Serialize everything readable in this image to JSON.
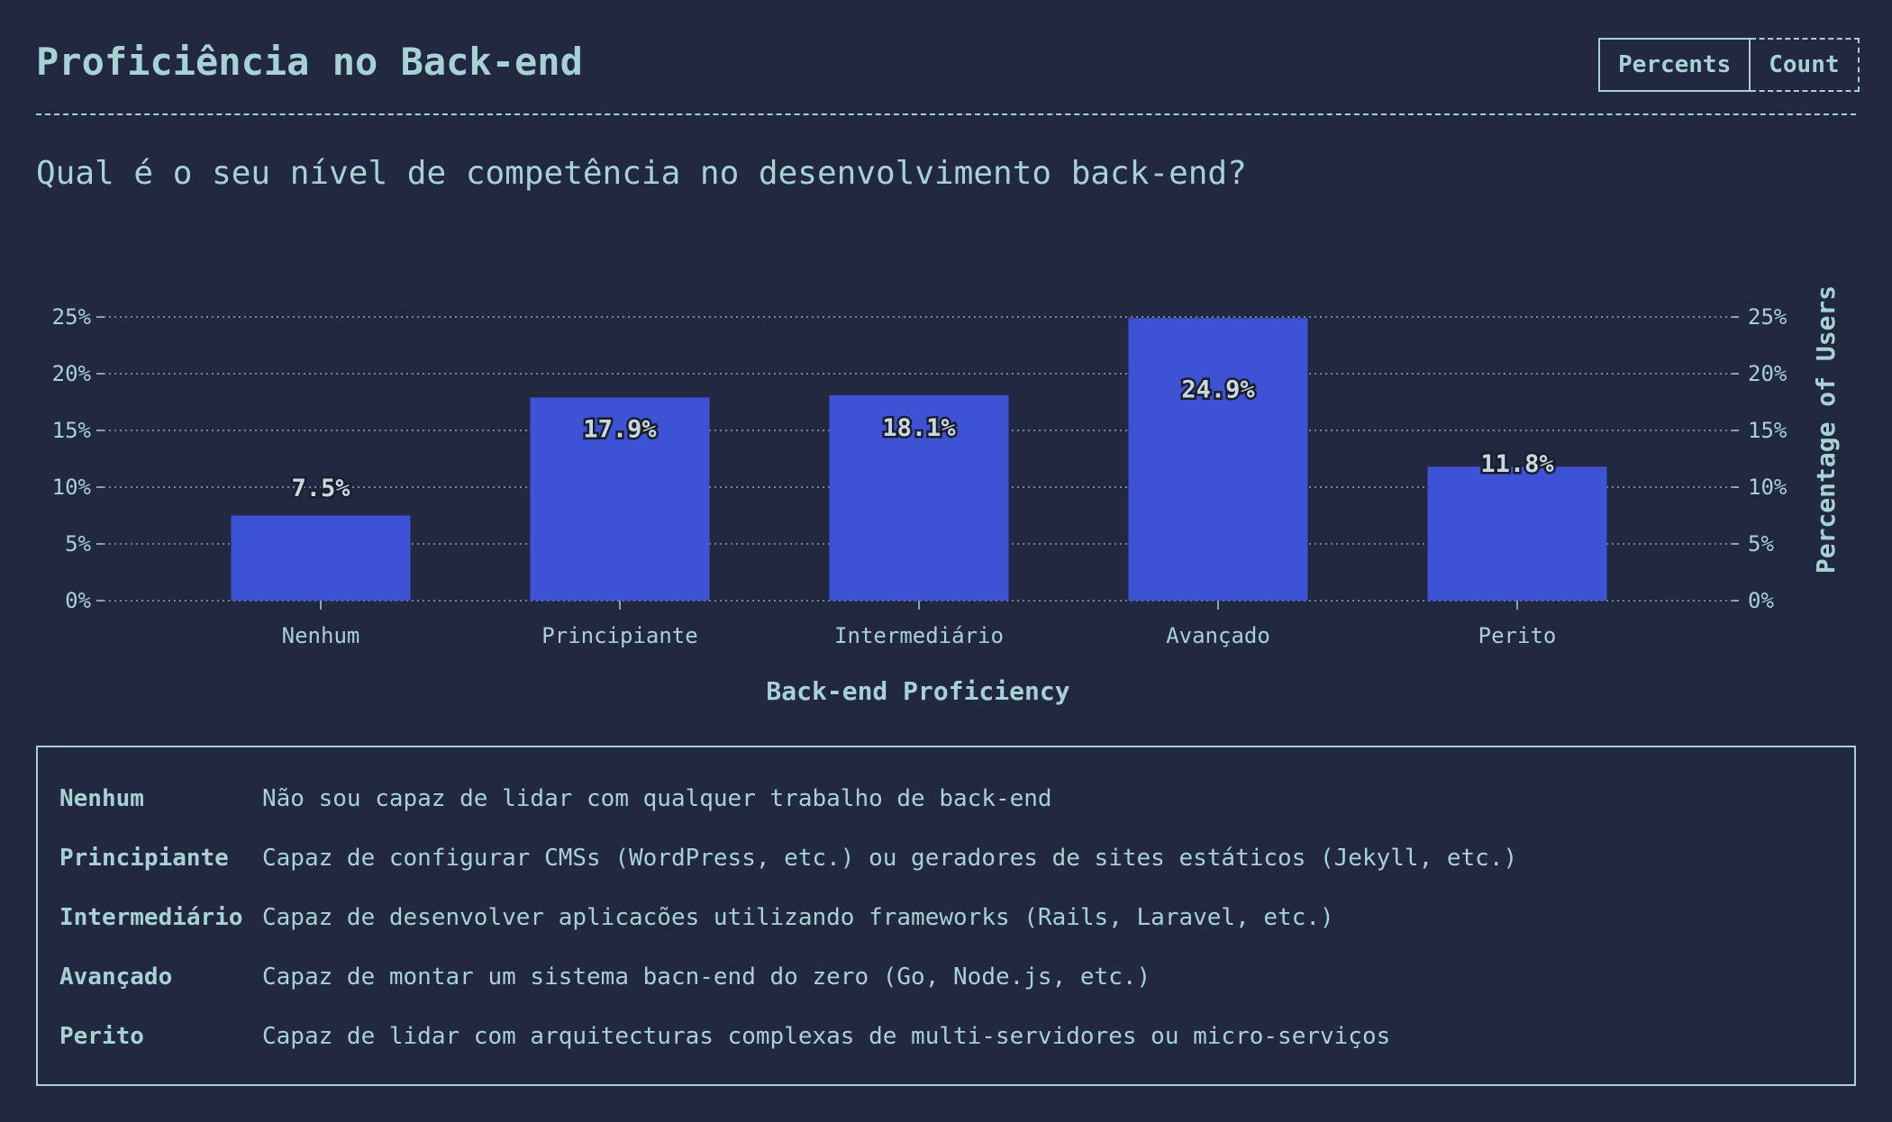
{
  "header": {
    "title": "Proficiência no Back-end",
    "toggle": {
      "percents_label": "Percents",
      "count_label": "Count",
      "selected": "Percents"
    }
  },
  "question": "Qual é o seu nível de competência no desenvolvimento back-end?",
  "colors": {
    "background": "#232841",
    "text": "#a6d2d4",
    "bar": "#3d52d5"
  },
  "chart_data": {
    "type": "bar",
    "categories": [
      "Nenhum",
      "Principiante",
      "Intermediário",
      "Avançado",
      "Perito"
    ],
    "values": [
      7.5,
      17.9,
      18.1,
      24.9,
      11.8
    ],
    "data_labels": [
      "7.5%",
      "17.9%",
      "18.1%",
      "24.9%",
      "11.8%"
    ],
    "xlabel": "Back-end Proficiency",
    "ylabel": "Percentage of Users",
    "ylim": [
      0,
      25
    ],
    "yticks": [
      0,
      5,
      10,
      15,
      20,
      25
    ],
    "ytick_labels": [
      "0%",
      "5%",
      "10%",
      "15%",
      "20%",
      "25%"
    ],
    "grid": true,
    "dual_y_axis": true
  },
  "legend": {
    "items": [
      {
        "term": "Nenhum",
        "description": "Não sou capaz de lidar com qualquer trabalho de back-end"
      },
      {
        "term": "Principiante",
        "description": "Capaz de configurar CMSs (WordPress, etc.) ou geradores de sites estáticos (Jekyll, etc.)"
      },
      {
        "term": "Intermediário",
        "description": "Capaz de desenvolver aplicacões utilizando frameworks (Rails, Laravel, etc.)"
      },
      {
        "term": "Avançado",
        "description": "Capaz de montar um sistema bacn-end do zero (Go, Node.js, etc.)"
      },
      {
        "term": "Perito",
        "description": "Capaz de lidar com arquitecturas complexas de multi-servidores ou micro-serviços"
      }
    ]
  }
}
